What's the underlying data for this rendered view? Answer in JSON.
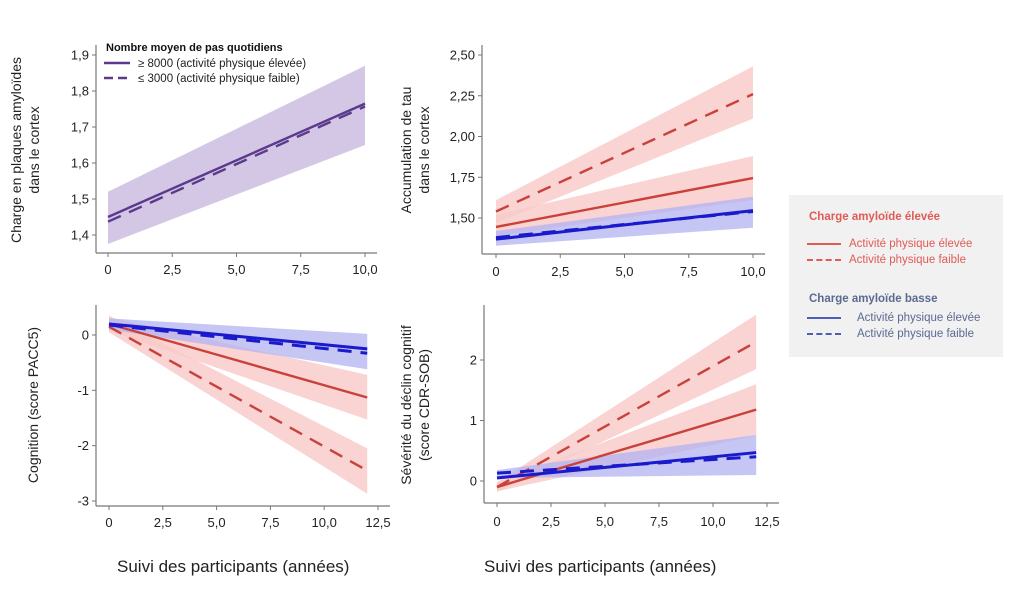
{
  "colors": {
    "purple": "#5b3a8c",
    "purple_band": "#c9b9e0",
    "red": "#c9413a",
    "red_band": "#f8c9c7",
    "blue": "#1a1acc",
    "blue_band": "#b3b3f2",
    "legend_red_title": "#e05b55",
    "legend_red_text": "#e05b55",
    "legend_blue_title": "#5a6a90",
    "legend_blue_text": "#5a6a90",
    "axis": "#777777"
  },
  "shared": {
    "xlabel": "Suivi des participants (années)"
  },
  "legend": {
    "groups": [
      {
        "title": "Charge amyloïde élevée",
        "items": [
          {
            "label": "Activité physique élevée",
            "style": "solid"
          },
          {
            "label": "Activité physique faible",
            "style": "dashed"
          }
        ]
      },
      {
        "title": "Charge amyloïde basse",
        "items": [
          {
            "label": "Activité physique élevée",
            "style": "solid"
          },
          {
            "label": "Activité physique faible",
            "style": "dashed"
          }
        ]
      }
    ]
  },
  "chart_data": [
    {
      "type": "line",
      "title": "",
      "ylabel": [
        "Charge en plaques amyloïdes",
        "dans le cortex"
      ],
      "xlabel": "",
      "xlim": [
        0,
        10
      ],
      "ylim": [
        1.35,
        1.9
      ],
      "xticks": [
        0,
        2.5,
        5,
        7.5,
        10
      ],
      "xtick_labels": [
        "0",
        "2,5",
        "5,0",
        "7,5",
        "10,0"
      ],
      "yticks": [
        1.4,
        1.5,
        1.6,
        1.7,
        1.8,
        1.9
      ],
      "ytick_labels": [
        "1,4",
        "1,5",
        "1,6",
        "1,7",
        "1,8",
        "1,9"
      ],
      "legend": {
        "title": "Nombre moyen de pas quotidiens",
        "position": "top-left",
        "entries": [
          "≥ 8000 (activité physique élevée)",
          "≤ 3000 (activité physique faible)"
        ]
      },
      "bands": [
        {
          "color": "purple",
          "x": [
            0,
            10
          ],
          "lower": [
            1.375,
            1.65
          ],
          "upper": [
            1.52,
            1.87
          ]
        }
      ],
      "series": [
        {
          "name": "≥ 8000 (activité physique élevée)",
          "color": "purple",
          "style": "solid",
          "x": [
            0,
            10
          ],
          "y": [
            1.45,
            1.765
          ]
        },
        {
          "name": "≤ 3000 (activité physique faible)",
          "color": "purple",
          "style": "dashed",
          "x": [
            0,
            10
          ],
          "y": [
            1.437,
            1.757
          ]
        }
      ]
    },
    {
      "type": "line",
      "title": "",
      "ylabel": [
        "Accumulation de tau",
        "dans le cortex"
      ],
      "xlabel": "",
      "xlim": [
        0,
        10
      ],
      "ylim": [
        1.28,
        2.5
      ],
      "xticks": [
        0,
        2.5,
        5,
        7.5,
        10
      ],
      "xtick_labels": [
        "0",
        "2,5",
        "5,0",
        "7,5",
        "10,0"
      ],
      "yticks": [
        1.5,
        1.75,
        2.0,
        2.25,
        2.5
      ],
      "ytick_labels": [
        "1,50",
        "1,75",
        "2,00",
        "2,25",
        "2,50"
      ],
      "bands": [
        {
          "color": "red",
          "x": [
            0,
            10
          ],
          "lower": [
            1.47,
            2.11
          ],
          "upper": [
            1.61,
            2.43
          ]
        },
        {
          "color": "red",
          "x": [
            0,
            10
          ],
          "lower": [
            1.39,
            1.61
          ],
          "upper": [
            1.52,
            1.88
          ]
        },
        {
          "color": "blue",
          "x": [
            0,
            10
          ],
          "lower": [
            1.33,
            1.44
          ],
          "upper": [
            1.42,
            1.63
          ]
        }
      ],
      "series": [
        {
          "name": "Charge amyloïde élevée – Activité physique faible",
          "color": "red",
          "style": "dashed",
          "x": [
            0,
            10
          ],
          "y": [
            1.54,
            2.26
          ]
        },
        {
          "name": "Charge amyloïde élevée – Activité physique élevée",
          "color": "red",
          "style": "solid",
          "x": [
            0,
            10
          ],
          "y": [
            1.445,
            1.745
          ]
        },
        {
          "name": "Charge amyloïde basse – Activité physique élevée",
          "color": "blue",
          "style": "solid",
          "x": [
            0,
            10
          ],
          "y": [
            1.37,
            1.545
          ]
        },
        {
          "name": "Charge amyloïde basse – Activité physique faible",
          "color": "blue",
          "style": "dashed",
          "x": [
            0,
            10
          ],
          "y": [
            1.38,
            1.54
          ]
        }
      ]
    },
    {
      "type": "line",
      "title": "",
      "ylabel": [
        "Cognition (score PACC5)"
      ],
      "xlabel": "Suivi des participants (années)",
      "xlim": [
        0,
        12.5
      ],
      "ylim": [
        -3,
        0.55
      ],
      "xticks": [
        0,
        2.5,
        5,
        7.5,
        10,
        12.5
      ],
      "xtick_labels": [
        "0",
        "2,5",
        "5,0",
        "7,5",
        "10,0",
        "12,5"
      ],
      "yticks": [
        -3,
        -2,
        -1,
        0
      ],
      "ytick_labels": [
        "-3",
        "-2",
        "-1",
        "0"
      ],
      "bands": [
        {
          "color": "red",
          "x": [
            0,
            12
          ],
          "lower": [
            0.05,
            -2.87
          ],
          "upper": [
            0.35,
            -2.05
          ]
        },
        {
          "color": "red",
          "x": [
            0,
            12
          ],
          "lower": [
            0.08,
            -1.53
          ],
          "upper": [
            0.32,
            -0.72
          ]
        },
        {
          "color": "blue",
          "x": [
            0,
            12
          ],
          "lower": [
            0.1,
            -0.62
          ],
          "upper": [
            0.3,
            0.02
          ]
        }
      ],
      "series": [
        {
          "name": "Charge amyloïde élevée – Activité physique faible",
          "color": "red",
          "style": "dashed",
          "x": [
            0,
            12
          ],
          "y": [
            0.15,
            -2.45
          ]
        },
        {
          "name": "Charge amyloïde élevée – Activité physique élevée",
          "color": "red",
          "style": "solid",
          "x": [
            0,
            12
          ],
          "y": [
            0.2,
            -1.13
          ]
        },
        {
          "name": "Charge amyloïde basse – Activité physique faible",
          "color": "blue",
          "style": "dashed",
          "x": [
            0,
            12
          ],
          "y": [
            0.18,
            -0.33
          ]
        },
        {
          "name": "Charge amyloïde basse – Activité physique élevée",
          "color": "blue",
          "style": "solid",
          "x": [
            0,
            12
          ],
          "y": [
            0.2,
            -0.25
          ]
        }
      ]
    },
    {
      "type": "line",
      "title": "",
      "ylabel": [
        "Sévérité du déclin cognitif",
        "(score CDR-SOB)"
      ],
      "xlabel": "Suivi des participants (années)",
      "xlim": [
        0,
        12.5
      ],
      "ylim": [
        -0.37,
        2.9
      ],
      "xticks": [
        0,
        2.5,
        5,
        7.5,
        10,
        12.5
      ],
      "xtick_labels": [
        "0",
        "2,5",
        "5,0",
        "7,5",
        "10,0",
        "12,5"
      ],
      "yticks": [
        0,
        1,
        2
      ],
      "ytick_labels": [
        "0",
        "1",
        "2"
      ],
      "bands": [
        {
          "color": "red",
          "x": [
            0,
            12
          ],
          "lower": [
            -0.18,
            1.85
          ],
          "upper": [
            -0.02,
            2.75
          ]
        },
        {
          "color": "red",
          "x": [
            0,
            12
          ],
          "lower": [
            -0.17,
            0.75
          ],
          "upper": [
            -0.03,
            1.6
          ]
        },
        {
          "color": "blue",
          "x": [
            0,
            12
          ],
          "lower": [
            0.05,
            0.1
          ],
          "upper": [
            0.18,
            0.76
          ]
        }
      ],
      "series": [
        {
          "name": "Charge amyloïde élevée – Activité physique faible",
          "color": "red",
          "style": "dashed",
          "x": [
            0,
            12
          ],
          "y": [
            -0.1,
            2.3
          ]
        },
        {
          "name": "Charge amyloïde élevée – Activité physique élevée",
          "color": "red",
          "style": "solid",
          "x": [
            0,
            12
          ],
          "y": [
            -0.1,
            1.18
          ]
        },
        {
          "name": "Charge amyloïde basse – Activité physique élevée",
          "color": "blue",
          "style": "solid",
          "x": [
            0,
            12
          ],
          "y": [
            0.05,
            0.47
          ]
        },
        {
          "name": "Charge amyloïde basse – Activité physique faible",
          "color": "blue",
          "style": "dashed",
          "x": [
            0,
            12
          ],
          "y": [
            0.13,
            0.4
          ]
        }
      ]
    }
  ]
}
